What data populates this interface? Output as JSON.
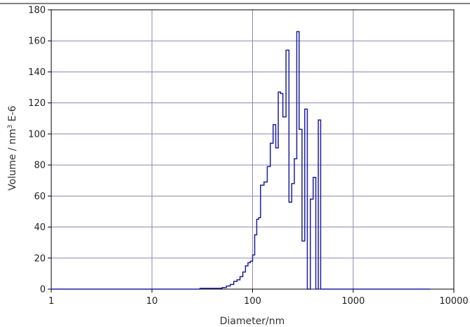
{
  "chart_data": {
    "type": "line",
    "xlabel": "Diameter/nm",
    "ylabel_main": "Volume / nm",
    "ylabel_sup": "3",
    "ylabel_suffix": " E-6",
    "x_scale": "log",
    "xlim": [
      1,
      10000
    ],
    "ylim": [
      0,
      180
    ],
    "x_ticks": [
      1,
      10,
      100,
      1000,
      10000
    ],
    "x_tick_labels": [
      "1",
      "10",
      "100",
      "1000",
      "10000"
    ],
    "y_ticks": [
      0,
      20,
      40,
      60,
      80,
      100,
      120,
      140,
      160,
      180
    ],
    "y_tick_labels": [
      "0",
      "20",
      "40",
      "60",
      "80",
      "100",
      "120",
      "140",
      "160",
      "180"
    ],
    "grid": true,
    "line_color": "#1f1f9a",
    "grid_color": "#8a8ab0",
    "series": [
      {
        "style": "step",
        "x": [
          1,
          30,
          40,
          50,
          55,
          60,
          65,
          70,
          75,
          80,
          85,
          90,
          95,
          100,
          105,
          110,
          115,
          120,
          130,
          140,
          150,
          160,
          170,
          180,
          190,
          200,
          215,
          230,
          245,
          260,
          275,
          290,
          310,
          330,
          350,
          375,
          400,
          425,
          450,
          475,
          500,
          530,
          560,
          595,
          630,
          5800
        ],
        "y": [
          0,
          0.5,
          0.5,
          1,
          2,
          3,
          5,
          6,
          8,
          11,
          15,
          17,
          18,
          22,
          35,
          45,
          46,
          67,
          69,
          79,
          94,
          106,
          91,
          127,
          126,
          111,
          154,
          56,
          68,
          84,
          166,
          103,
          31,
          116,
          0,
          58,
          72,
          0,
          109,
          0,
          0,
          0,
          0,
          0,
          0,
          0
        ]
      }
    ]
  }
}
